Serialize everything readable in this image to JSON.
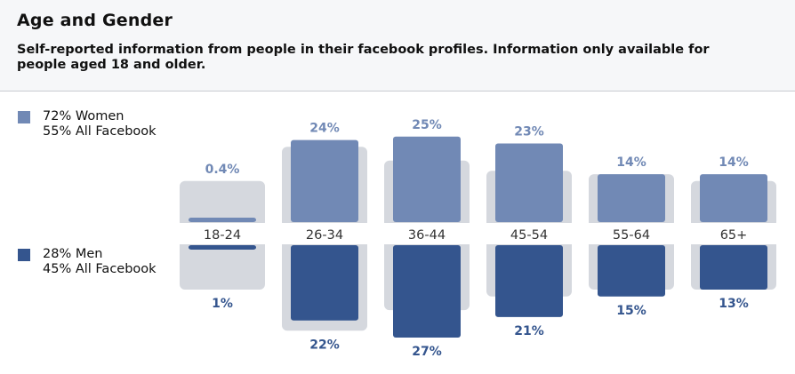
{
  "header": {
    "title": "Age and Gender",
    "subtitle": "Self-reported information from people in their facebook profiles. Information only available for people aged 18 and older."
  },
  "legend": {
    "women": {
      "line1": "72% Women",
      "line2": "55% All Facebook",
      "color": "#7189b5"
    },
    "men": {
      "line1": "28% Men",
      "line2": "45% All Facebook",
      "color": "#34558e"
    }
  },
  "chart_data": {
    "type": "bar",
    "categories": [
      "18-24",
      "26-34",
      "36-44",
      "45-54",
      "55-64",
      "65+"
    ],
    "series": [
      {
        "name": "Women",
        "values": [
          0.4,
          24,
          25,
          23,
          14,
          14
        ],
        "labels": [
          "0.4%",
          "24%",
          "25%",
          "23%",
          "14%",
          "14%"
        ],
        "direction": "up"
      },
      {
        "name": "Men",
        "values": [
          1,
          22,
          27,
          21,
          15,
          13
        ],
        "labels": [
          "1%",
          "22%",
          "27%",
          "21%",
          "15%",
          "13%"
        ],
        "direction": "down"
      }
    ],
    "background_all_facebook": {
      "up": [
        12,
        22,
        18,
        15,
        14,
        12
      ],
      "down": [
        13,
        25,
        19,
        15,
        13,
        13
      ]
    },
    "colors": {
      "women": "#7189b5",
      "men": "#34558e",
      "women_label": "#7189b5",
      "men_label": "#34558e",
      "background": "#d5d8de",
      "axis_label": "#333333"
    }
  }
}
